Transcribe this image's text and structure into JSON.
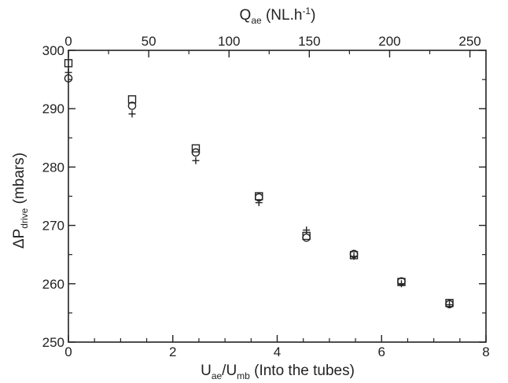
{
  "chart_data": {
    "type": "scatter",
    "xlabel": {
      "base": "U",
      "sub1": "ae",
      "mid": "/U",
      "sub2": "mb",
      "tail": " (Into the tubes)"
    },
    "x2label": {
      "base": "Q",
      "sub": "ae",
      "tail": " (NL.h",
      "sup": "-1",
      "close": ")"
    },
    "ylabel": {
      "base": "ΔP",
      "sub": "drive",
      "tail": " (mbars)"
    },
    "xlim": [
      0,
      8
    ],
    "ylim": [
      250,
      300
    ],
    "x2lim": [
      0,
      260
    ],
    "xticks": [
      0,
      2,
      4,
      6,
      8
    ],
    "x2ticks": [
      0,
      50,
      100,
      150,
      200,
      250
    ],
    "yticks": [
      250,
      260,
      270,
      280,
      290,
      300
    ],
    "grid": false,
    "series": [
      {
        "marker": "square",
        "color": "#222222",
        "points": [
          [
            0.0,
            297.8
          ],
          [
            1.22,
            291.6
          ],
          [
            2.44,
            283.2
          ],
          [
            3.65,
            275.0
          ],
          [
            4.56,
            268.2
          ],
          [
            5.47,
            264.9
          ],
          [
            6.38,
            260.3
          ],
          [
            7.3,
            256.7
          ]
        ]
      },
      {
        "marker": "circle",
        "color": "#222222",
        "points": [
          [
            0.0,
            295.2
          ],
          [
            1.22,
            290.5
          ],
          [
            2.44,
            282.5
          ],
          [
            3.65,
            274.8
          ],
          [
            4.56,
            267.9
          ],
          [
            5.47,
            265.1
          ],
          [
            6.38,
            260.4
          ],
          [
            7.3,
            256.5
          ]
        ]
      },
      {
        "marker": "plus",
        "color": "#222222",
        "points": [
          [
            0.0,
            296.2
          ],
          [
            1.22,
            289.1
          ],
          [
            2.44,
            281.1
          ],
          [
            3.65,
            273.9
          ],
          [
            4.56,
            269.2
          ],
          [
            5.47,
            264.7
          ],
          [
            6.38,
            260.0
          ],
          [
            7.3,
            256.4
          ]
        ]
      }
    ]
  }
}
